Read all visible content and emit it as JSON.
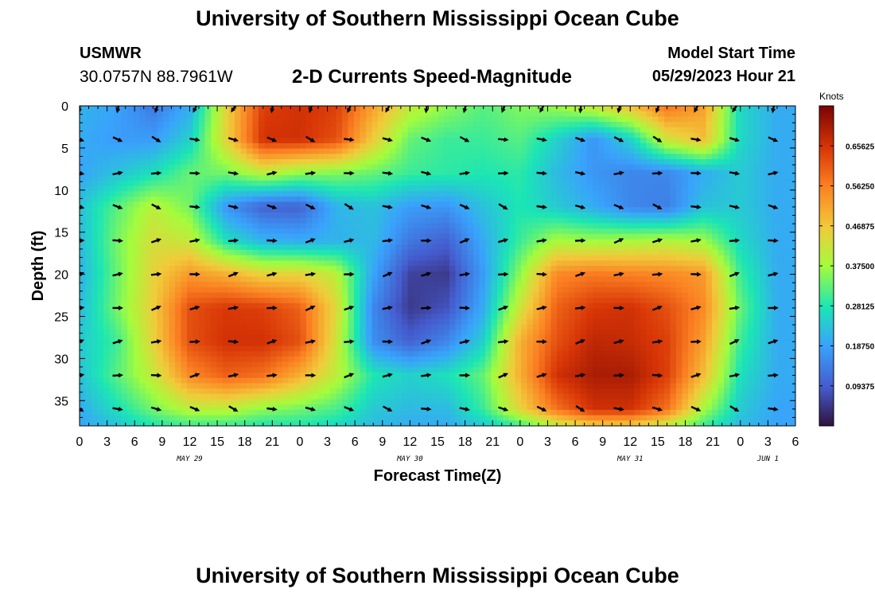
{
  "header": {
    "title": "University of Southern Mississippi Ocean Cube",
    "station": "USMWR",
    "coords": "30.0757N  88.7961W",
    "subtitle": "2-D Currents Speed-Magnitude",
    "model_start_label": "Model Start Time",
    "model_start_value": "05/29/2023 Hour 21"
  },
  "footer": {
    "title": "University of Southern Mississippi Ocean Cube"
  },
  "chart_data": {
    "type": "heatmap",
    "title": "2-D Currents Speed-Magnitude",
    "xlabel": "Forecast Time(Z)",
    "ylabel": "Depth (ft)",
    "x_range_hours": [
      0,
      78
    ],
    "y_range": [
      0,
      38
    ],
    "x_ticks": [
      {
        "h": 0,
        "label": "0"
      },
      {
        "h": 3,
        "label": "3"
      },
      {
        "h": 6,
        "label": "6"
      },
      {
        "h": 9,
        "label": "9"
      },
      {
        "h": 12,
        "label": "12"
      },
      {
        "h": 15,
        "label": "15"
      },
      {
        "h": 18,
        "label": "18"
      },
      {
        "h": 21,
        "label": "21"
      },
      {
        "h": 24,
        "label": "0"
      },
      {
        "h": 27,
        "label": "3"
      },
      {
        "h": 30,
        "label": "6"
      },
      {
        "h": 33,
        "label": "9"
      },
      {
        "h": 36,
        "label": "12"
      },
      {
        "h": 39,
        "label": "15"
      },
      {
        "h": 42,
        "label": "18"
      },
      {
        "h": 45,
        "label": "21"
      },
      {
        "h": 48,
        "label": "0"
      },
      {
        "h": 51,
        "label": "3"
      },
      {
        "h": 54,
        "label": "6"
      },
      {
        "h": 57,
        "label": "9"
      },
      {
        "h": 60,
        "label": "12"
      },
      {
        "h": 63,
        "label": "15"
      },
      {
        "h": 66,
        "label": "18"
      },
      {
        "h": 69,
        "label": "21"
      },
      {
        "h": 72,
        "label": "0"
      },
      {
        "h": 75,
        "label": "3"
      },
      {
        "h": 78,
        "label": "6"
      }
    ],
    "y_ticks": [
      0,
      5,
      10,
      15,
      20,
      25,
      30,
      35
    ],
    "date_labels": [
      {
        "h": 12,
        "label": "MAY 29"
      },
      {
        "h": 36,
        "label": "MAY 30"
      },
      {
        "h": 60,
        "label": "MAY 31"
      },
      {
        "h": 75,
        "label": "JUN 1"
      }
    ],
    "colorbar": {
      "label": "Knots",
      "min": 0,
      "max": 0.75,
      "ticks": [
        "0.65625",
        "0.56250",
        "0.46875",
        "0.37500",
        "0.28125",
        "0.18750",
        "0.09375"
      ],
      "tick_values": [
        0.65625,
        0.5625,
        0.46875,
        0.375,
        0.28125,
        0.1875,
        0.09375
      ]
    },
    "speed_field_knots": {
      "x_hours": [
        0,
        4,
        8,
        12,
        16,
        20,
        24,
        28,
        32,
        36,
        40,
        44,
        48,
        52,
        56,
        60,
        64,
        68,
        72,
        76,
        78
      ],
      "y_depth_ft": [
        0,
        4,
        8,
        12,
        16,
        20,
        24,
        28,
        32,
        36,
        38
      ],
      "values": [
        [
          0.21,
          0.19,
          0.13,
          0.2,
          0.45,
          0.64,
          0.66,
          0.64,
          0.52,
          0.41,
          0.36,
          0.32,
          0.35,
          0.37,
          0.42,
          0.48,
          0.58,
          0.52,
          0.26,
          0.2,
          0.2
        ],
        [
          0.2,
          0.18,
          0.18,
          0.25,
          0.45,
          0.66,
          0.66,
          0.62,
          0.46,
          0.33,
          0.3,
          0.3,
          0.32,
          0.25,
          0.17,
          0.25,
          0.42,
          0.48,
          0.26,
          0.2,
          0.2
        ],
        [
          0.19,
          0.23,
          0.27,
          0.33,
          0.34,
          0.4,
          0.36,
          0.35,
          0.33,
          0.3,
          0.29,
          0.28,
          0.29,
          0.22,
          0.17,
          0.15,
          0.15,
          0.2,
          0.24,
          0.2,
          0.2
        ],
        [
          0.23,
          0.32,
          0.4,
          0.34,
          0.17,
          0.1,
          0.1,
          0.21,
          0.23,
          0.18,
          0.17,
          0.23,
          0.28,
          0.24,
          0.2,
          0.15,
          0.14,
          0.23,
          0.24,
          0.2,
          0.2
        ],
        [
          0.22,
          0.34,
          0.43,
          0.41,
          0.27,
          0.21,
          0.2,
          0.21,
          0.22,
          0.13,
          0.1,
          0.2,
          0.3,
          0.38,
          0.37,
          0.38,
          0.39,
          0.37,
          0.26,
          0.2,
          0.2
        ],
        [
          0.21,
          0.33,
          0.45,
          0.53,
          0.5,
          0.45,
          0.45,
          0.4,
          0.19,
          0.06,
          0.05,
          0.18,
          0.36,
          0.55,
          0.57,
          0.56,
          0.55,
          0.53,
          0.3,
          0.2,
          0.2
        ],
        [
          0.22,
          0.34,
          0.46,
          0.62,
          0.65,
          0.64,
          0.6,
          0.44,
          0.15,
          0.05,
          0.08,
          0.2,
          0.42,
          0.6,
          0.65,
          0.66,
          0.62,
          0.55,
          0.33,
          0.2,
          0.2
        ],
        [
          0.24,
          0.3,
          0.45,
          0.62,
          0.66,
          0.66,
          0.62,
          0.42,
          0.16,
          0.1,
          0.15,
          0.25,
          0.5,
          0.62,
          0.68,
          0.67,
          0.64,
          0.52,
          0.3,
          0.2,
          0.2
        ],
        [
          0.23,
          0.32,
          0.41,
          0.55,
          0.6,
          0.58,
          0.5,
          0.4,
          0.28,
          0.25,
          0.27,
          0.33,
          0.5,
          0.66,
          0.7,
          0.7,
          0.64,
          0.48,
          0.27,
          0.2,
          0.2
        ],
        [
          0.2,
          0.27,
          0.34,
          0.4,
          0.4,
          0.36,
          0.34,
          0.31,
          0.24,
          0.22,
          0.22,
          0.3,
          0.45,
          0.58,
          0.66,
          0.66,
          0.58,
          0.38,
          0.24,
          0.19,
          0.19
        ],
        [
          0.19,
          0.23,
          0.28,
          0.3,
          0.3,
          0.28,
          0.28,
          0.26,
          0.22,
          0.2,
          0.2,
          0.24,
          0.3,
          0.4,
          0.46,
          0.46,
          0.4,
          0.3,
          0.22,
          0.19,
          0.19
        ]
      ]
    },
    "current_vectors": {
      "x_hours": [
        0,
        4.2,
        8.4,
        12.6,
        16.8,
        21,
        25.2,
        29.4,
        33.6,
        37.8,
        42,
        46.2,
        50.4,
        54.6,
        58.8,
        63,
        67.2,
        71.4,
        75.6
      ],
      "y_depth_ft": [
        0,
        4,
        8,
        12,
        16,
        20,
        24,
        28,
        32,
        36
      ],
      "row_direction_deg": [
        200,
        110,
        90,
        110,
        80,
        80,
        80,
        80,
        80,
        110
      ]
    }
  }
}
